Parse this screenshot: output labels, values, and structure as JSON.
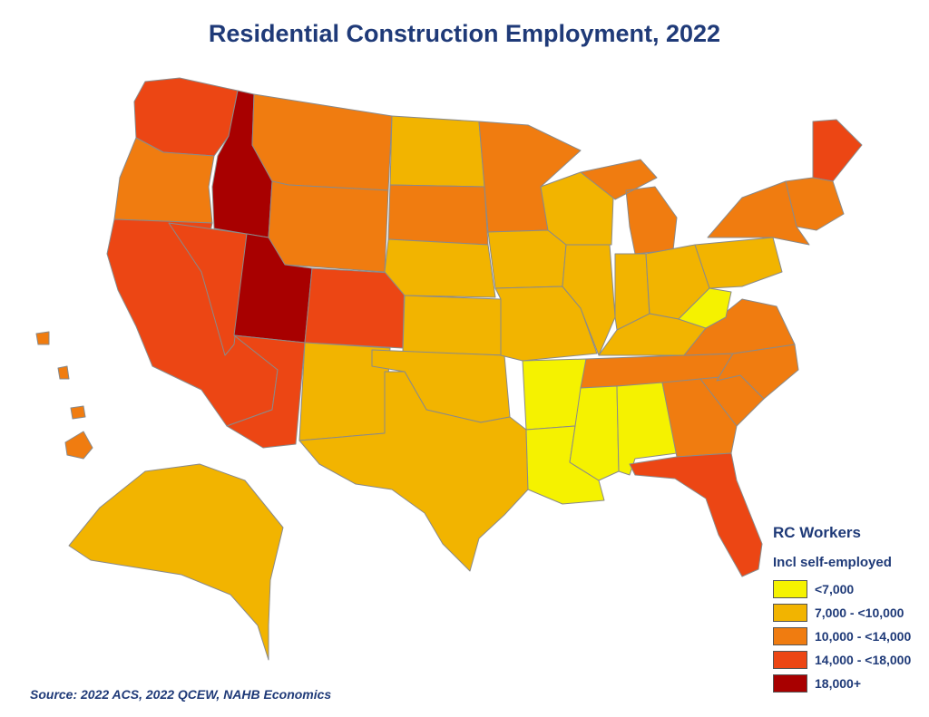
{
  "title": "Residential Construction Employment, 2022",
  "legend": {
    "title": "RC Workers",
    "subtitle": "Incl self-employed",
    "items": [
      {
        "label": "<7,000",
        "color": "#f5f200"
      },
      {
        "label": "7,000 - <10,000",
        "color": "#f2b400"
      },
      {
        "label": "10,000 - <14,000",
        "color": "#f07c10"
      },
      {
        "label": "14,000 - <18,000",
        "color": "#ec4614"
      },
      {
        "label": "18,000+",
        "color": "#a80000"
      }
    ]
  },
  "source": "Source: 2022 ACS, 2022 QCEW, NAHB Economics",
  "regions": [
    {
      "name": "Washington",
      "class": 3
    },
    {
      "name": "Oregon",
      "class": 2
    },
    {
      "name": "California",
      "class": 3
    },
    {
      "name": "Nevada",
      "class": 3
    },
    {
      "name": "Idaho",
      "class": 4
    },
    {
      "name": "Montana",
      "class": 2
    },
    {
      "name": "Wyoming",
      "class": 2
    },
    {
      "name": "Utah",
      "class": 4
    },
    {
      "name": "Colorado",
      "class": 3
    },
    {
      "name": "Arizona",
      "class": 3
    },
    {
      "name": "New Mexico",
      "class": 1
    },
    {
      "name": "North Dakota",
      "class": 1
    },
    {
      "name": "South Dakota",
      "class": 2
    },
    {
      "name": "Nebraska",
      "class": 1
    },
    {
      "name": "Kansas",
      "class": 1
    },
    {
      "name": "Oklahoma",
      "class": 1
    },
    {
      "name": "Texas",
      "class": 1
    },
    {
      "name": "Minnesota",
      "class": 2
    },
    {
      "name": "Iowa",
      "class": 1
    },
    {
      "name": "Missouri",
      "class": 1
    },
    {
      "name": "Arkansas",
      "class": 0
    },
    {
      "name": "Louisiana",
      "class": 0
    },
    {
      "name": "Wisconsin",
      "class": 1
    },
    {
      "name": "Illinois",
      "class": 1
    },
    {
      "name": "Michigan",
      "class": 2
    },
    {
      "name": "Indiana",
      "class": 1
    },
    {
      "name": "Ohio",
      "class": 1
    },
    {
      "name": "Kentucky",
      "class": 1
    },
    {
      "name": "Tennessee",
      "class": 2
    },
    {
      "name": "Mississippi",
      "class": 0
    },
    {
      "name": "Alabama",
      "class": 0
    },
    {
      "name": "Georgia",
      "class": 2
    },
    {
      "name": "Florida",
      "class": 3
    },
    {
      "name": "South Carolina",
      "class": 2
    },
    {
      "name": "North Carolina",
      "class": 2
    },
    {
      "name": "Virginia",
      "class": 2
    },
    {
      "name": "West Virginia",
      "class": 0
    },
    {
      "name": "Pennsylvania",
      "class": 1
    },
    {
      "name": "New York",
      "class": 2
    },
    {
      "name": "Maine",
      "class": 3
    },
    {
      "name": "New England",
      "class": 2
    },
    {
      "name": "Alaska",
      "class": 1
    },
    {
      "name": "Hawaii",
      "class": 2
    }
  ]
}
